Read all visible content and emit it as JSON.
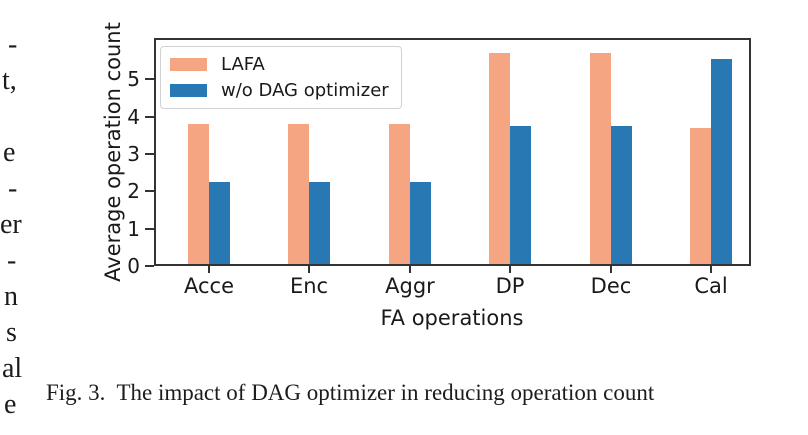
{
  "page": {
    "background": "#ffffff"
  },
  "margin_fragments": [
    "-",
    "t,",
    "e",
    "-",
    "er",
    "-",
    "n",
    "s",
    "al",
    "e"
  ],
  "caption": {
    "label": "Fig. 3.",
    "text": "The impact of DAG optimizer in reducing operation count"
  },
  "chart_data": {
    "type": "bar",
    "title": "",
    "categories": [
      "Acce",
      "Enc",
      "Aggr",
      "DP",
      "Dec",
      "Cal"
    ],
    "series": [
      {
        "name": "LAFA",
        "color": "#F6A583",
        "values": [
          3.75,
          3.75,
          3.75,
          5.65,
          5.65,
          3.65
        ]
      },
      {
        "name": "w/o DAG optimizer",
        "color": "#2878B4",
        "values": [
          2.2,
          2.2,
          2.2,
          3.7,
          3.7,
          5.5
        ]
      }
    ],
    "xlabel": "FA operations",
    "ylabel": "Average operation count",
    "yticks": [
      0,
      1,
      2,
      3,
      4,
      5
    ],
    "ylim": [
      0,
      6.0
    ],
    "grid": false,
    "legend_position": "upper left",
    "axis_color": "#333333"
  }
}
